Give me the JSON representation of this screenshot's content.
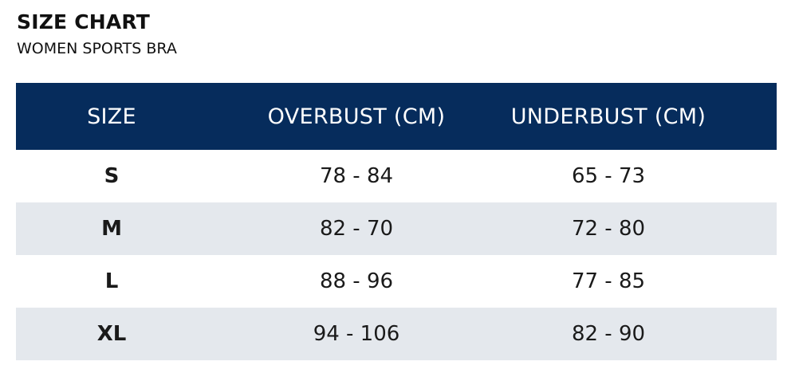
{
  "title": "SIZE CHART",
  "subtitle": "WOMEN SPORTS BRA",
  "colors": {
    "header_bg": "#062c5c",
    "header_text": "#ffffff",
    "stripe_bg": "#e4e8ed"
  },
  "table": {
    "headers": [
      "SIZE",
      "OVERBUST (CM)",
      "UNDERBUST (CM)"
    ],
    "rows": [
      [
        "S",
        "78 - 84",
        "65 - 73"
      ],
      [
        "M",
        "82 - 70",
        "72 - 80"
      ],
      [
        "L",
        "88 - 96",
        "77 - 85"
      ],
      [
        "XL",
        "94 - 106",
        "82 - 90"
      ]
    ]
  }
}
